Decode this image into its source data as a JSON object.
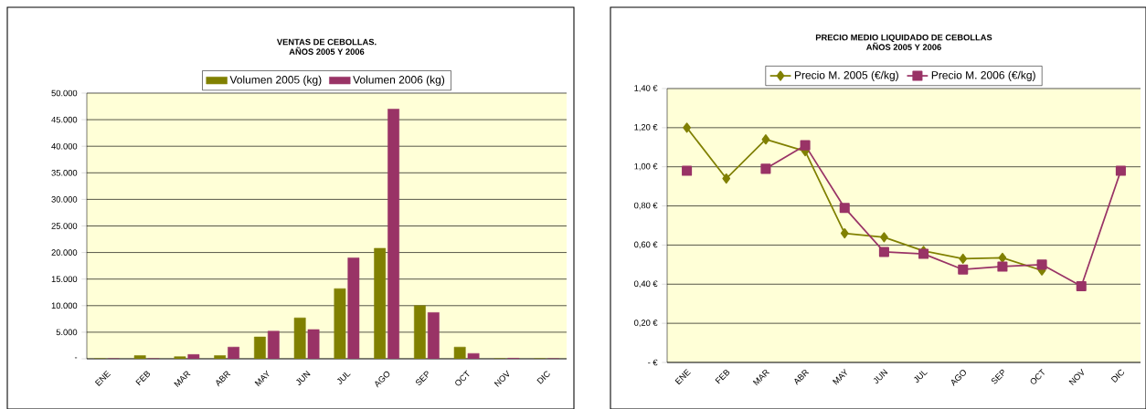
{
  "chart_data": [
    {
      "type": "bar",
      "title": "VENTAS DE CEBOLLAS.",
      "subtitle": "AÑOS 2005 Y 2006",
      "categories": [
        "ENE",
        "FEB",
        "MAR",
        "ABR",
        "MAY",
        "JUN",
        "JUL",
        "AGO",
        "SEP",
        "OCT",
        "NOV",
        "DIC"
      ],
      "series": [
        {
          "name": "Volumen 2005 (kg)",
          "color": "#808000",
          "values": [
            0,
            600,
            400,
            600,
            4100,
            7700,
            13200,
            20800,
            10000,
            2200,
            0,
            0
          ]
        },
        {
          "name": "Volumen 2006 (kg)",
          "color": "#993366",
          "values": [
            0,
            0,
            800,
            2200,
            5200,
            5500,
            19000,
            47000,
            8700,
            1000,
            100,
            0
          ]
        }
      ],
      "ylim": [
        0,
        50000
      ],
      "yticks": [
        {
          "value": 0,
          "label": "-"
        },
        {
          "value": 5000,
          "label": "5.000"
        },
        {
          "value": 10000,
          "label": "10.000"
        },
        {
          "value": 15000,
          "label": "15.000"
        },
        {
          "value": 20000,
          "label": "20.000"
        },
        {
          "value": 25000,
          "label": "25.000"
        },
        {
          "value": 30000,
          "label": "30.000"
        },
        {
          "value": 35000,
          "label": "35.000"
        },
        {
          "value": 40000,
          "label": "40.000"
        },
        {
          "value": 45000,
          "label": "45.000"
        },
        {
          "value": 50000,
          "label": "50.000"
        }
      ],
      "grid": "y",
      "legend": "top"
    },
    {
      "type": "line",
      "title": "PRECIO MEDIO LIQUIDADO DE CEBOLLAS",
      "subtitle": "AÑOS 2005 Y 2006",
      "categories": [
        "ENE",
        "FEB",
        "MAR",
        "ABR",
        "MAY",
        "JUN",
        "JUL",
        "AGO",
        "SEP",
        "OCT",
        "NOV",
        "DIC"
      ],
      "series": [
        {
          "name": "Precio M. 2005 (€/kg)",
          "color": "#808000",
          "marker": "diamond",
          "values": [
            1.2,
            0.94,
            1.14,
            1.08,
            0.66,
            0.64,
            0.57,
            0.53,
            0.535,
            0.47,
            null,
            null
          ]
        },
        {
          "name": "Precio M. 2006 (€/kg)",
          "color": "#993366",
          "marker": "square",
          "values": [
            0.98,
            null,
            0.99,
            1.11,
            0.79,
            0.565,
            0.555,
            0.475,
            0.49,
            0.5,
            0.39,
            0.98
          ]
        }
      ],
      "ylim": [
        0,
        1.4
      ],
      "yticks": [
        {
          "value": 0,
          "label": "-   €"
        },
        {
          "value": 0.2,
          "label": "0,20 €"
        },
        {
          "value": 0.4,
          "label": "0,40 €"
        },
        {
          "value": 0.6,
          "label": "0,60 €"
        },
        {
          "value": 0.8,
          "label": "0,80 €"
        },
        {
          "value": 1.0,
          "label": "1,00 €"
        },
        {
          "value": 1.2,
          "label": "1,20 €"
        },
        {
          "value": 1.4,
          "label": "1,40 €"
        }
      ],
      "grid": "y",
      "legend": "top"
    }
  ]
}
